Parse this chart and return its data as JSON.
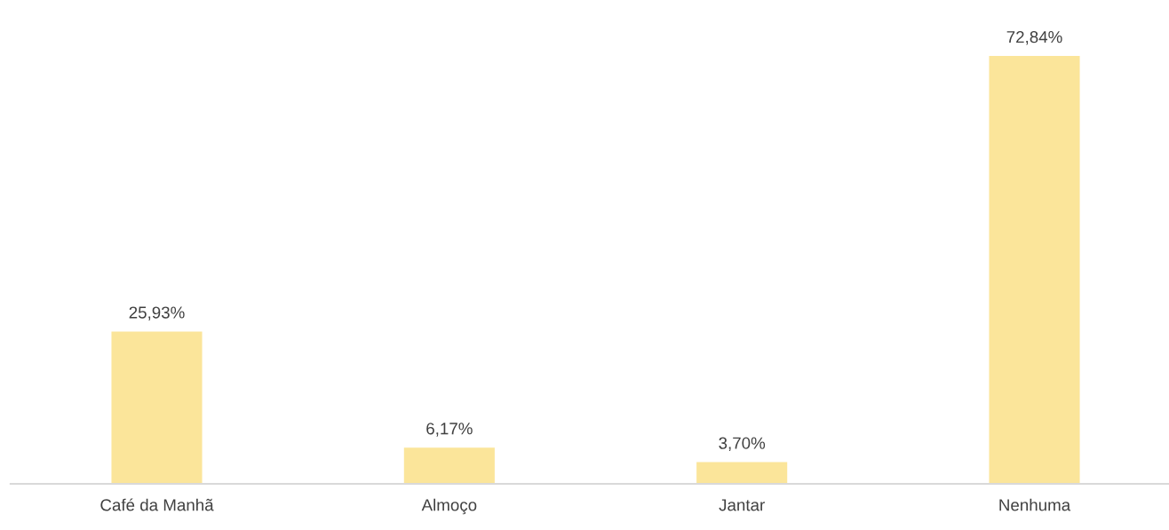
{
  "chart_data": {
    "type": "bar",
    "categories": [
      "Café da Manhã",
      "Almoço",
      "Jantar",
      "Nenhuma"
    ],
    "values": [
      25.93,
      6.17,
      3.7,
      72.84
    ],
    "value_labels": [
      "25,93%",
      "6,17%",
      "3,70%",
      "72,84%"
    ],
    "color": "#fbe59a",
    "grid": false,
    "legend": false
  }
}
